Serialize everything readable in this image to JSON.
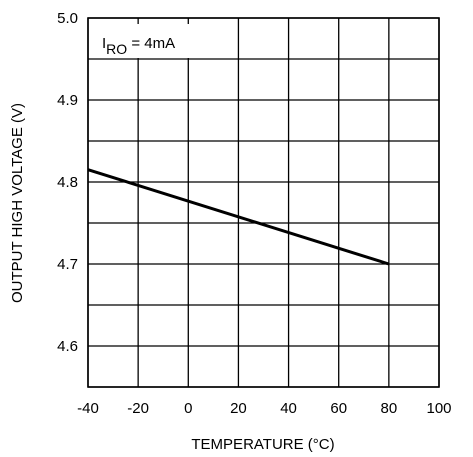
{
  "chart_data": {
    "type": "line",
    "xlabel": "TEMPERATURE (°C)",
    "ylabel": "OUTPUT HIGH VOLTAGE (V)",
    "xlim": [
      -40,
      100
    ],
    "ylim": [
      4.55,
      5.0
    ],
    "x_ticks": [
      -40,
      -20,
      0,
      20,
      40,
      60,
      80,
      100
    ],
    "x_tick_labels": [
      "-40",
      "-20",
      "0",
      "20",
      "40",
      "60",
      "80",
      "100"
    ],
    "y_ticks": [
      4.6,
      4.7,
      4.8,
      4.9,
      5.0
    ],
    "y_tick_labels": [
      "4.6",
      "4.7",
      "4.8",
      "4.9",
      "5.0"
    ],
    "grid": true,
    "annotation": {
      "sym": "I",
      "sub": "RO",
      "rest": " = 4mA"
    },
    "series": [
      {
        "x": [
          -40,
          80
        ],
        "y": [
          4.815,
          4.7
        ]
      }
    ]
  }
}
